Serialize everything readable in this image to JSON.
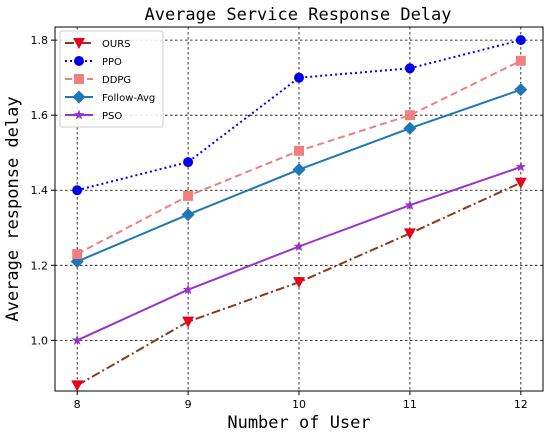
{
  "chart_data": {
    "type": "line",
    "title": "Average Service Response Delay",
    "xlabel": "Number of User",
    "ylabel": "Average response delay",
    "x": [
      8,
      9,
      10,
      11,
      12
    ],
    "x_ticks": [
      "8",
      "9",
      "10",
      "11",
      "12"
    ],
    "y_ticks": [
      "1.0",
      "1.2",
      "1.4",
      "1.6",
      "1.8"
    ],
    "y_tick_values": [
      1.0,
      1.2,
      1.4,
      1.6,
      1.8
    ],
    "xlim": [
      7.8,
      12.2
    ],
    "ylim": [
      0.865,
      1.835
    ],
    "grid": true,
    "legend_position": "top-left",
    "series": [
      {
        "name": "OURS",
        "values": [
          0.88,
          1.05,
          1.155,
          1.285,
          1.42
        ],
        "color": "#e8001c",
        "line_color": "#8b3a1a",
        "linestyle": "dashdot",
        "marker": "triangle-down"
      },
      {
        "name": "PPO",
        "values": [
          1.4,
          1.475,
          1.7,
          1.725,
          1.8
        ],
        "color": "#0000ee",
        "line_color": "#0000ee",
        "linestyle": "dotted",
        "marker": "circle"
      },
      {
        "name": "DDPG",
        "values": [
          1.23,
          1.385,
          1.505,
          1.6,
          1.745
        ],
        "color": "#f08080",
        "line_color": "#f08080",
        "linestyle": "dashed",
        "marker": "square"
      },
      {
        "name": "Follow-Avg",
        "values": [
          1.21,
          1.335,
          1.455,
          1.565,
          1.668
        ],
        "color": "#1f77b4",
        "line_color": "#1f77b4",
        "linestyle": "solid",
        "marker": "diamond"
      },
      {
        "name": "PSO",
        "values": [
          1.0,
          1.135,
          1.25,
          1.36,
          1.462
        ],
        "color": "#9933cc",
        "line_color": "#9933cc",
        "linestyle": "solid",
        "marker": "star"
      }
    ]
  }
}
